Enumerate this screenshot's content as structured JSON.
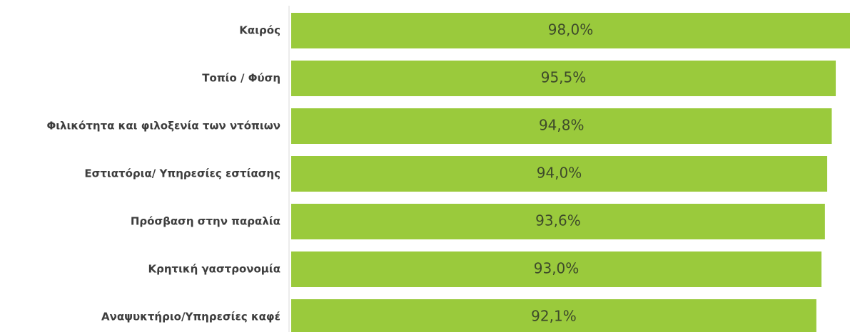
{
  "chart_data": {
    "type": "hbar",
    "categories": [
      "Καιρός",
      "Τοπίο / Φύση",
      "Φιλικότητα και φιλοξενία των ντόπιων",
      "Εστιατόρια/ Υπηρεσίες εστίασης",
      "Πρόσβαση στην παραλία",
      "Κρητική γαστρονομία",
      "Αναψυκτήριο/Υπηρεσίες καφέ"
    ],
    "values": [
      98.0,
      95.5,
      94.8,
      94.0,
      93.6,
      93.0,
      92.1
    ],
    "value_labels": [
      "98,0%",
      "95,5%",
      "94,8%",
      "94,0%",
      "93,6%",
      "93,0%",
      "92,1%"
    ],
    "color": "#9aca3c",
    "xlim": [
      0,
      100
    ]
  }
}
